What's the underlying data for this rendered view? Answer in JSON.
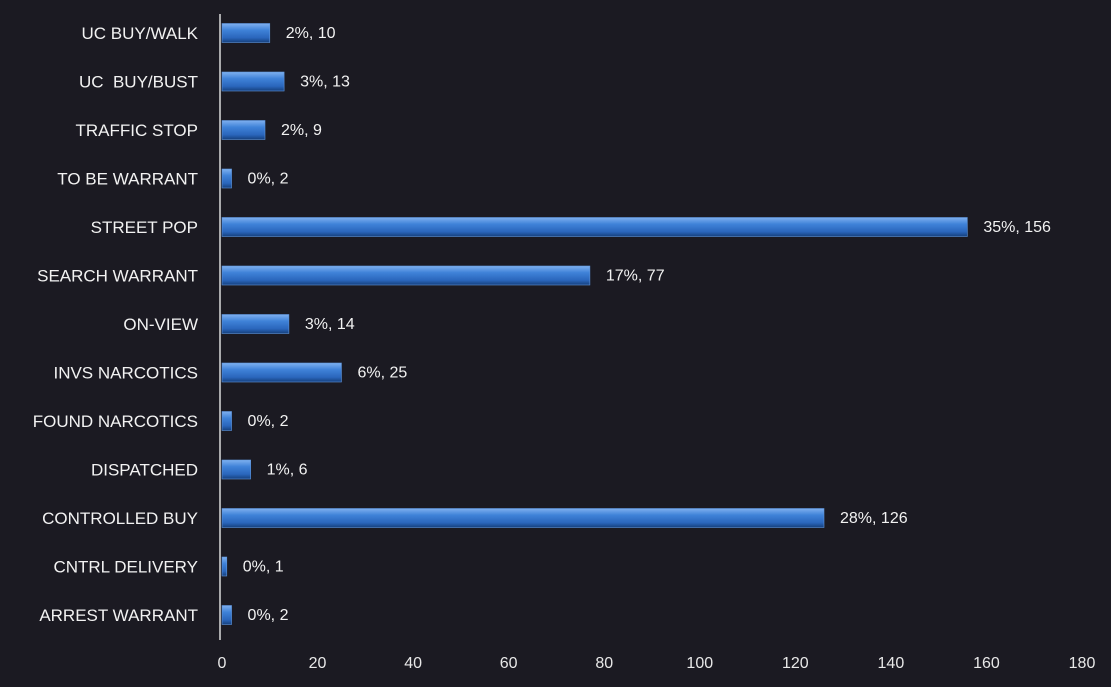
{
  "chart_data": {
    "type": "bar",
    "orientation": "horizontal",
    "title": "",
    "xlabel": "",
    "ylabel": "",
    "xlim": [
      0,
      180
    ],
    "xticks": [
      0,
      20,
      40,
      60,
      80,
      100,
      120,
      140,
      160,
      180
    ],
    "xtick_labels": [
      "0",
      "20",
      "40",
      "60",
      "80",
      "100",
      "120",
      "140",
      "160",
      "180"
    ],
    "grid": false,
    "legend": "none",
    "colors": {
      "background": "#1b1a22",
      "bar": "#2e6fc9",
      "bar_highlight": "#7fb0ef",
      "bar_shadow": "#16407d",
      "axis": "#d9d9d9",
      "text": "#f2f2f2"
    },
    "categories": [
      "UC BUY/WALK",
      "UC  BUY/BUST",
      "TRAFFIC STOP",
      "TO BE WARRANT",
      "STREET POP",
      "SEARCH WARRANT",
      "ON-VIEW",
      "INVS NARCOTICS",
      "FOUND NARCOTICS",
      "DISPATCHED",
      "CONTROLLED BUY",
      "CNTRL DELIVERY",
      "ARREST WARRANT"
    ],
    "values": [
      10,
      13,
      9,
      2,
      156,
      77,
      14,
      25,
      2,
      6,
      126,
      1,
      2
    ],
    "data_labels": [
      "2%, 10",
      "3%, 13",
      "2%, 9",
      "0%, 2",
      "35%, 156",
      "17%, 77",
      "3%, 14",
      "6%, 25",
      "0%, 2",
      "1%, 6",
      "28%, 126",
      "0%, 1",
      "0%, 2"
    ]
  }
}
